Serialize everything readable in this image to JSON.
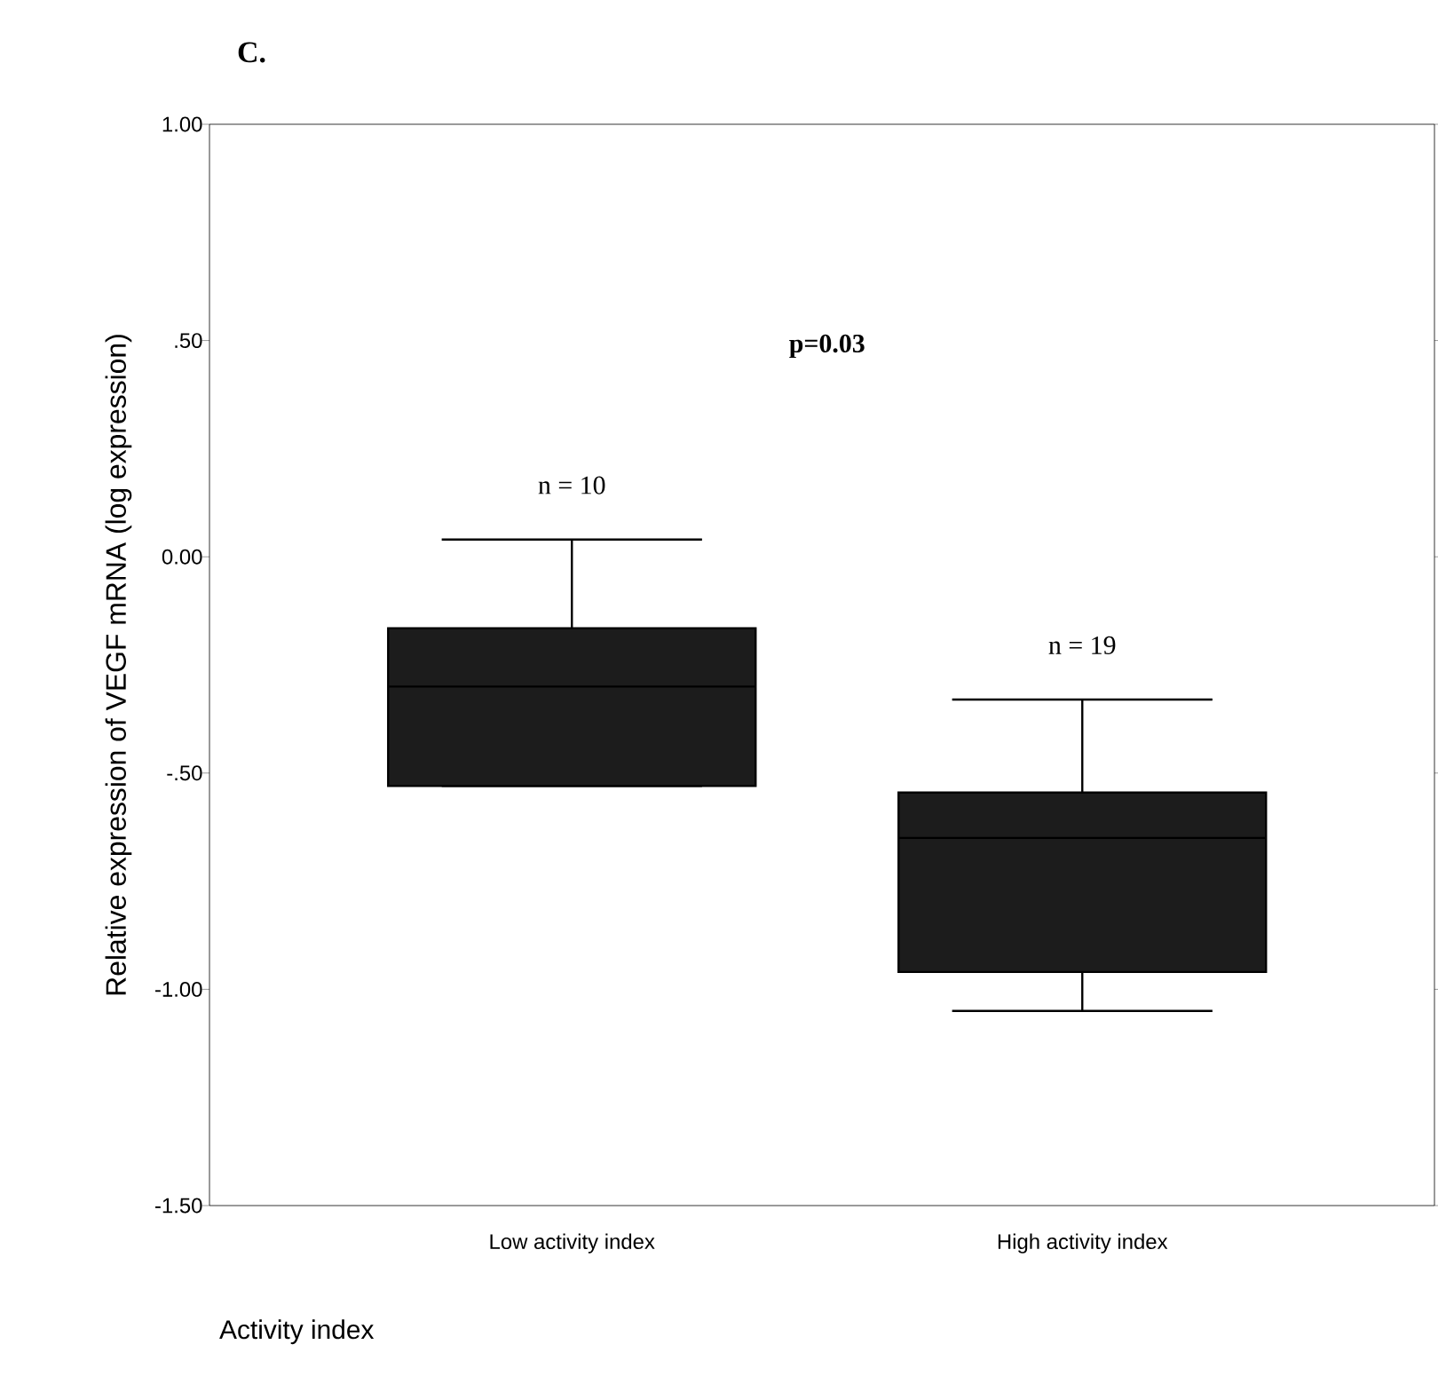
{
  "chart_data": {
    "type": "box",
    "title": "C.",
    "xlabel": "Activity index",
    "ylabel": "Relative expression of VEGF mRNA (log expression)",
    "categories": [
      "Low activity index",
      "High activity index"
    ],
    "boxes": [
      {
        "low": -0.53,
        "q1": -0.53,
        "median": -0.3,
        "q3": -0.165,
        "high": 0.04
      },
      {
        "low": -1.05,
        "q1": -0.96,
        "median": -0.65,
        "q3": -0.545,
        "high": -0.33
      }
    ],
    "color": "#1c1c1c",
    "ylim": [
      -1.5,
      1.0
    ],
    "yticks": [
      {
        "value": -1.5,
        "label": "-1.50"
      },
      {
        "value": -1.0,
        "label": "-1.00"
      },
      {
        "value": -0.5,
        "label": "-.50"
      },
      {
        "value": 0.0,
        "label": "0.00"
      },
      {
        "value": 0.5,
        "label": ".50"
      },
      {
        "value": 1.0,
        "label": "1.00"
      }
    ],
    "annotations": [
      "p=0.03",
      "n = 10",
      "n = 19"
    ]
  }
}
